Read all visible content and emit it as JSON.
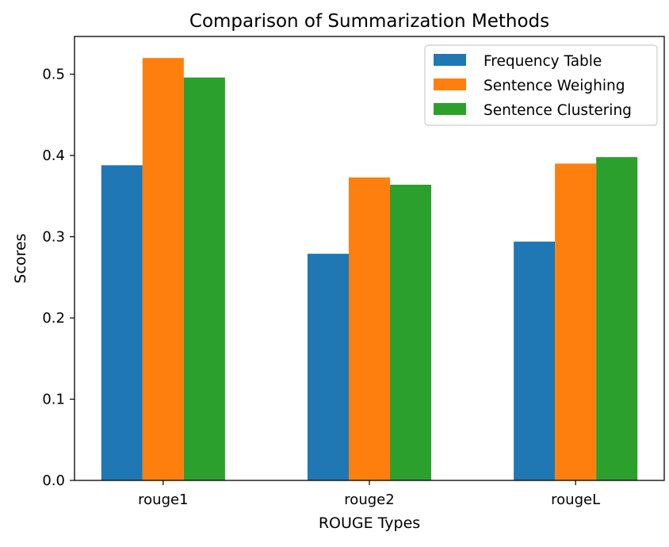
{
  "chart_data": {
    "type": "bar",
    "title": "Comparison of Summarization Methods",
    "xlabel": "ROUGE Types",
    "ylabel": "Scores",
    "categories": [
      "rouge1",
      "rouge2",
      "rougeL"
    ],
    "series": [
      {
        "name": "Frequency Table",
        "color": "#1f77b4",
        "values": [
          0.388,
          0.279,
          0.294
        ]
      },
      {
        "name": "Sentence Weighing",
        "color": "#ff7f0e",
        "values": [
          0.52,
          0.373,
          0.39
        ]
      },
      {
        "name": "Sentence Clustering",
        "color": "#2ca02c",
        "values": [
          0.496,
          0.364,
          0.398
        ]
      }
    ],
    "ylim": [
      0,
      0.5465
    ],
    "yticks": [
      0.0,
      0.1,
      0.2,
      0.3,
      0.4,
      0.5
    ],
    "ytick_labels": [
      "0.0",
      "0.1",
      "0.2",
      "0.3",
      "0.4",
      "0.5"
    ],
    "grid": false,
    "legend_position": "top-right"
  }
}
